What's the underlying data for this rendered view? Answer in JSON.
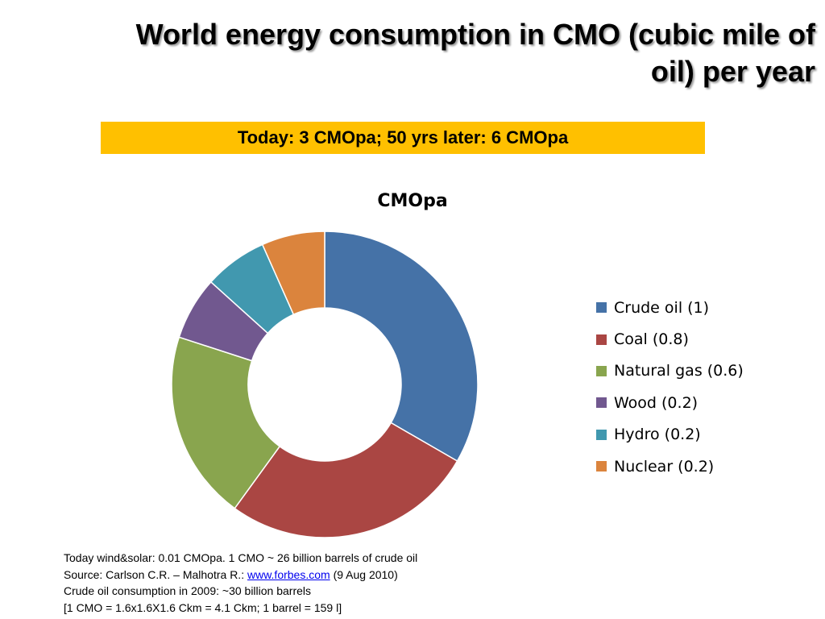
{
  "slide": {
    "title_line1": "World energy consumption in CMO (cubic mile of",
    "title_line2": "oil) per year",
    "banner": "Today: 3 CMOpa; 50 yrs later: 6 CMOpa"
  },
  "chart_data": {
    "type": "pie",
    "donut": true,
    "title": "CMOpa",
    "legend_position": "right",
    "categories": [
      "Crude oil (1)",
      "Coal (0.8)",
      "Natural gas (0.6)",
      "Wood (0.2)",
      "Hydro (0.2)",
      "Nuclear (0.2)"
    ],
    "values": [
      1,
      0.8,
      0.6,
      0.2,
      0.2,
      0.2
    ],
    "colors": [
      "#4572a7",
      "#aa4643",
      "#89a54e",
      "#71588f",
      "#4198af",
      "#db843d"
    ]
  },
  "notes": {
    "line1": "Today wind&solar: 0.01 CMOpa. 1 CMO ~ 26 billion barrels of crude oil",
    "line2_prefix": "Source: Carlson C.R. – Malhotra R.: ",
    "line2_link": "www.forbes.com",
    "line2_suffix": " (9 Aug 2010)",
    "line3": "Crude oil consumption in 2009: ~30 billion barrels",
    "line4": "[1 CMO = 1.6x1.6X1.6 Ckm = 4.1 Ckm; 1 barrel = 159 l]"
  }
}
